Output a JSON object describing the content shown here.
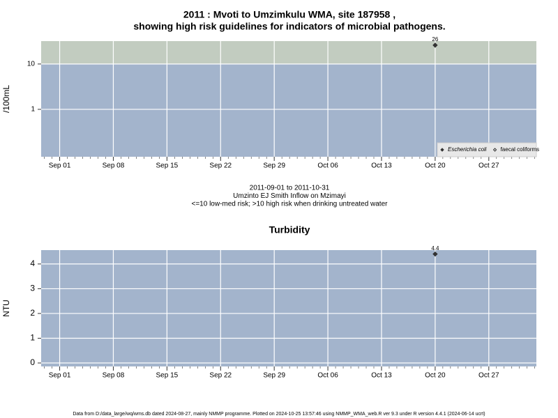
{
  "chart_data": [
    {
      "type": "scatter",
      "title": [
        "2011 : Mvoti to Umzimkulu WMA, site 187958 ,",
        "showing high risk guidelines for indicators of microbial pathogens."
      ],
      "subtitle": [
        "2011-09-01 to 2011-10-31",
        "Umzinto EJ Smith Inflow on Mzimayi",
        "<=10 low-med risk; >10 high risk when drinking untreated water"
      ],
      "y_label": "/100mL",
      "log_y": true,
      "ylim": [
        0.09,
        32
      ],
      "yticks": [
        1,
        10
      ],
      "guideline": 10,
      "band_colors": [
        "#a3b4cc",
        "#c2ccc0"
      ],
      "xlim": [
        "2011-08-29T14:00",
        "2011-11-02T05:00"
      ],
      "xticks": [
        {
          "value": "2011-09-01",
          "label": "Sep 01"
        },
        {
          "value": "2011-09-08",
          "label": "Sep 08"
        },
        {
          "value": "2011-09-15",
          "label": "Sep 15"
        },
        {
          "value": "2011-09-22",
          "label": "Sep 22"
        },
        {
          "value": "2011-09-29",
          "label": "Sep 29"
        },
        {
          "value": "2011-10-06",
          "label": "Oct 06"
        },
        {
          "value": "2011-10-13",
          "label": "Oct 13"
        },
        {
          "value": "2011-10-20",
          "label": "Oct 20"
        },
        {
          "value": "2011-10-27",
          "label": "Oct 27"
        }
      ],
      "grid": true,
      "legend": "bottom-right",
      "x": [
        "2011-10-20"
      ],
      "series": [
        {
          "name": "Escherichia coli",
          "color": "#333333",
          "marker": "filled",
          "font_style": "italic",
          "values": [
            26
          ]
        },
        {
          "name": "faecal coliforms",
          "color": "#333333",
          "marker": "open",
          "font_style": "normal",
          "values": [
            null
          ]
        }
      ]
    },
    {
      "type": "scatter",
      "title": [
        "Turbidity"
      ],
      "y_label": "NTU",
      "log_y": false,
      "ylim": [
        -0.14,
        4.56
      ],
      "yticks": [
        0,
        1,
        2,
        3,
        4
      ],
      "band_colors": [
        "#a3b4cc"
      ],
      "xlim": [
        "2011-08-29T14:00",
        "2011-11-02T05:00"
      ],
      "xticks": [
        {
          "value": "2011-09-01",
          "label": "Sep 01"
        },
        {
          "value": "2011-09-08",
          "label": "Sep 08"
        },
        {
          "value": "2011-09-15",
          "label": "Sep 15"
        },
        {
          "value": "2011-09-22",
          "label": "Sep 22"
        },
        {
          "value": "2011-09-29",
          "label": "Sep 29"
        },
        {
          "value": "2011-10-06",
          "label": "Oct 06"
        },
        {
          "value": "2011-10-13",
          "label": "Oct 13"
        },
        {
          "value": "2011-10-20",
          "label": "Oct 20"
        },
        {
          "value": "2011-10-27",
          "label": "Oct 27"
        }
      ],
      "grid": true,
      "x": [
        "2011-10-20"
      ],
      "series": [
        {
          "color": "#333333",
          "marker": "filled",
          "values": [
            4.4
          ]
        }
      ]
    }
  ],
  "footer": "Data from D:/data_large/wq/wms.db dated 2024-08-27, mainly NMMP programme. Plotted on 2024-10-25 13:57:46 using NMMP_WMA_web.R ver 9.3 under R version 4.4.1 (2024-06-14 ucrt)"
}
